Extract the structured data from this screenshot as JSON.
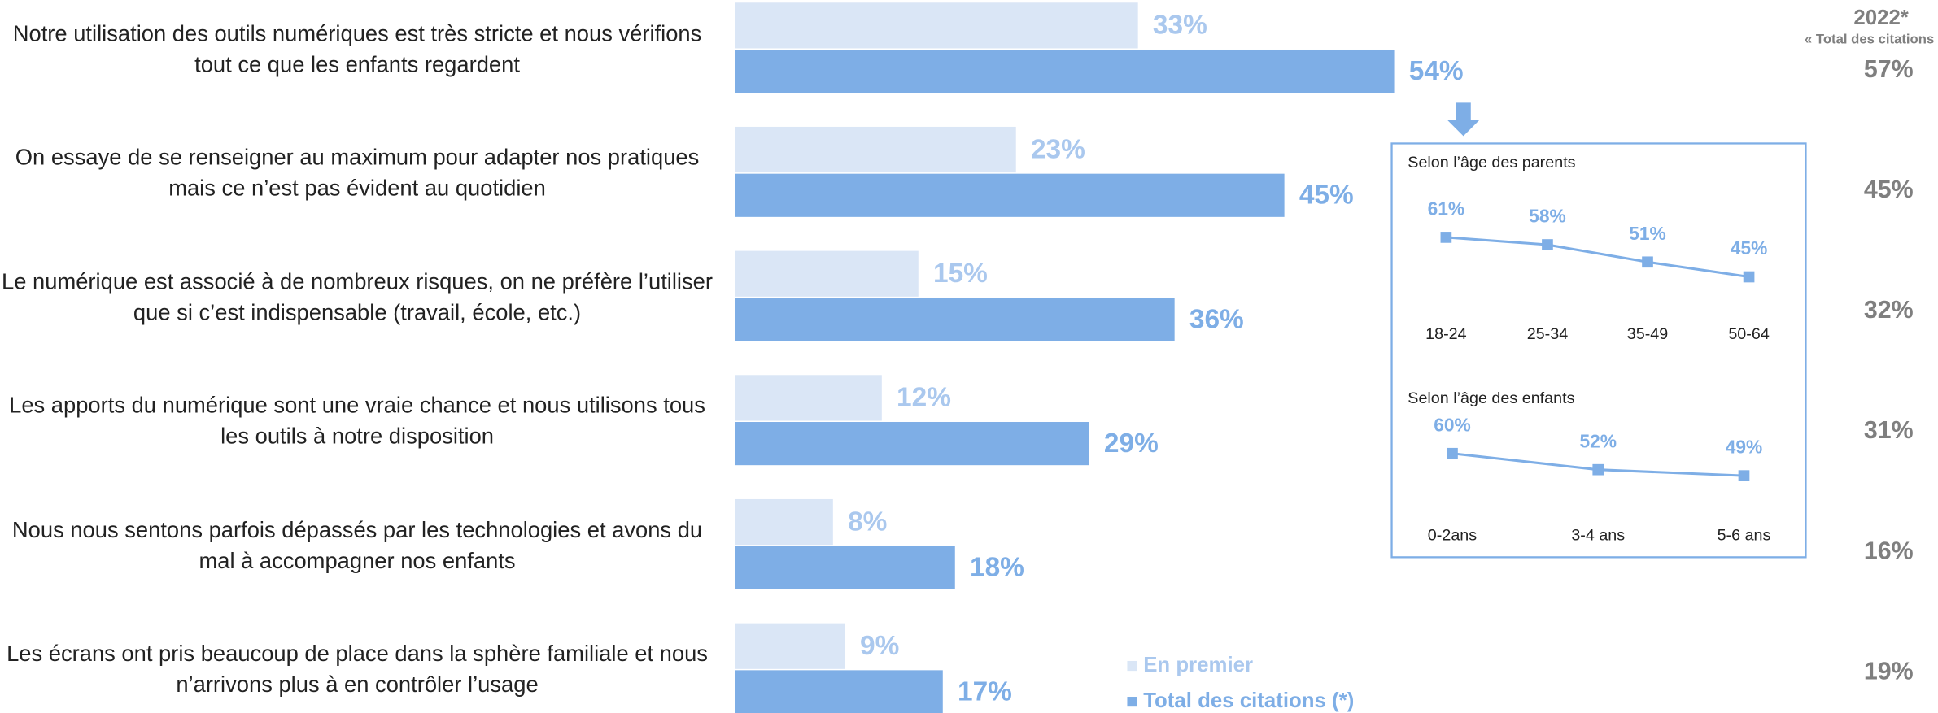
{
  "chart_data": {
    "type": "bar",
    "orientation": "horizontal",
    "categories": [
      "Notre utilisation des outils numériques est très stricte et nous vérifions tout ce que les enfants regardent",
      "On essaye de se renseigner au maximum pour adapter nos pratiques mais ce n’est pas évident au quotidien",
      "Le numérique est associé à de nombreux risques, on ne préfère l’utiliser que si c’est indispensable (travail, école, etc.)",
      "Les apports du numérique sont une vraie chance et nous utilisons tous les outils à notre disposition",
      "Nous nous sentons parfois dépassés par les technologies et avons du mal à accompagner nos enfants",
      "Les écrans ont pris beaucoup de place dans la sphère familiale et nous n’arrivons plus à en contrôler l’usage"
    ],
    "series": [
      {
        "name": "En premier",
        "color": "#dae6f6",
        "label_color": "#aac8ee",
        "values": [
          33,
          23,
          15,
          12,
          8,
          9
        ],
        "value_labels": [
          "33%",
          "23%",
          "15%",
          "12%",
          "8%",
          "9%"
        ]
      },
      {
        "name": "Total des citations (*)",
        "color": "#7eaee6",
        "label_color": "#7eaee6",
        "values": [
          54,
          45,
          36,
          29,
          18,
          17
        ],
        "value_labels": [
          "54%",
          "45%",
          "36%",
          "29%",
          "18%",
          "17%"
        ]
      }
    ],
    "comparison": {
      "title": "2022*",
      "subtitle": "« Total des citations",
      "color": "#7f7f7f",
      "values": [
        57,
        45,
        32,
        31,
        16,
        19
      ],
      "value_labels": [
        "57%",
        "45%",
        "32%",
        "31%",
        "16%",
        "19%"
      ]
    },
    "insets": [
      {
        "type": "line",
        "title": "Selon l’âge des parents",
        "color": "#7eaee6",
        "categories": [
          "18-24",
          "25-34",
          "35-49",
          "50-64"
        ],
        "values": [
          61,
          58,
          51,
          45
        ],
        "value_labels": [
          "61%",
          "58%",
          "51%",
          "45%"
        ]
      },
      {
        "type": "line",
        "title": "Selon l’âge des enfants",
        "color": "#7eaee6",
        "categories": [
          "0-2ans",
          "3-4 ans",
          "5-6 ans"
        ],
        "values": [
          60,
          52,
          49
        ],
        "value_labels": [
          "60%",
          "52%",
          "49%"
        ]
      }
    ]
  }
}
